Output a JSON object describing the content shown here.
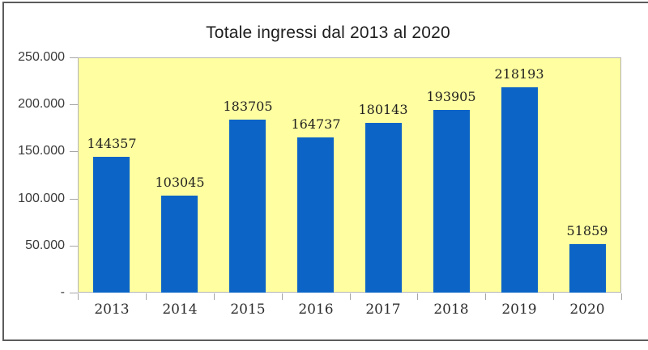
{
  "window": {
    "background": "#ffffff",
    "frame_border_color": "#5c5c5c"
  },
  "chart_data": {
    "type": "bar",
    "title": "Totale ingressi dal 2013 al 2020",
    "categories": [
      "2013",
      "2014",
      "2015",
      "2016",
      "2017",
      "2018",
      "2019",
      "2020"
    ],
    "values": [
      144357,
      103045,
      183705,
      164737,
      180143,
      193905,
      218193,
      51859
    ],
    "value_labels": [
      "144357",
      "103045",
      "183705",
      "164737",
      "180143",
      "193905",
      "218193",
      "51859"
    ],
    "xlabel": "",
    "ylabel": "",
    "ylim": [
      0,
      250000
    ],
    "ytick_interval": 50000,
    "ytick_labels": [
      "-",
      "50.000",
      "100.000",
      "150.000",
      "200.000",
      "250.000"
    ],
    "grid": false,
    "legend": false,
    "colors": {
      "bar": "#0c64c6",
      "plot_background": "#ffffa1",
      "plot_border": "#b3b3b3",
      "tick": "#a6a6a6",
      "value_label_text": "#1f1f1f",
      "category_label_text": "#2e2e2e",
      "ytick_label_text": "#3a3a3a",
      "title_text": "#1e1e1e"
    }
  }
}
